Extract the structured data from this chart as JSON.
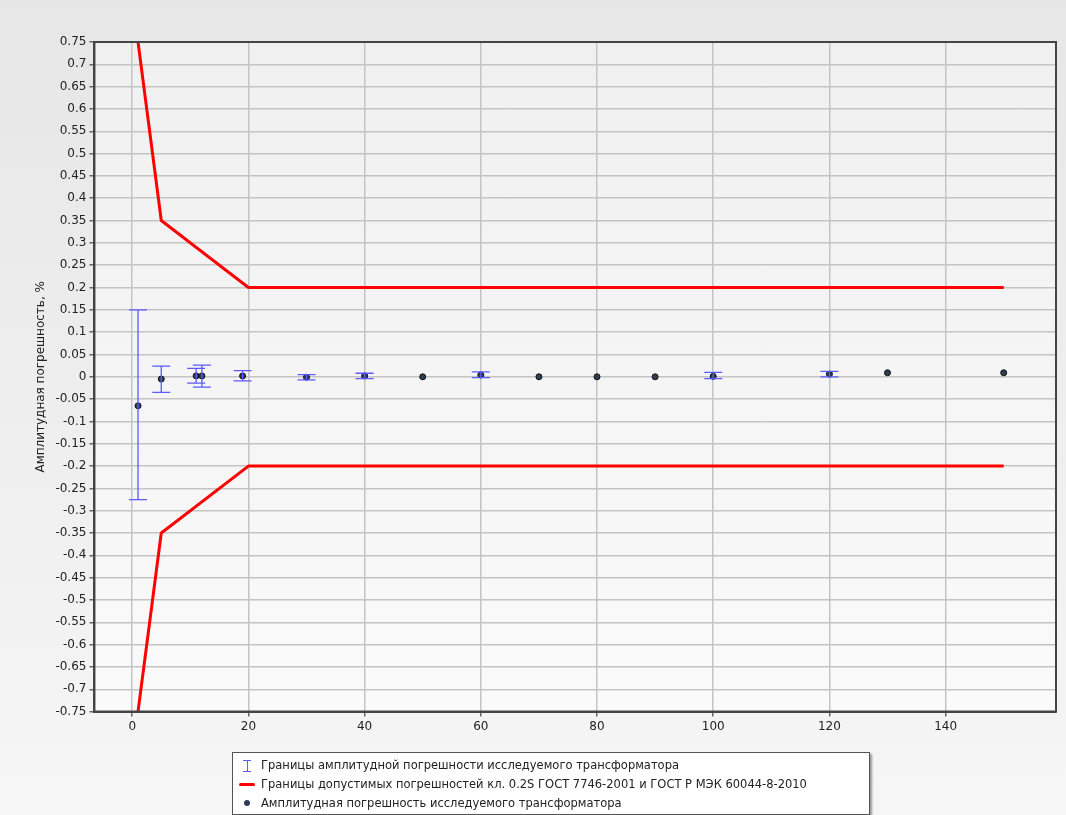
{
  "chart_data": {
    "type": "scatter",
    "ylabel": "Амплитудная погрешность, %",
    "xlim": [
      -6.5,
      159
    ],
    "xticks": [
      0,
      20,
      40,
      60,
      80,
      100,
      120,
      140
    ],
    "ylim": [
      -0.75,
      0.75
    ],
    "yticks": [
      -0.75,
      -0.7,
      -0.65,
      -0.6,
      -0.55,
      -0.5,
      -0.45,
      -0.4,
      -0.35,
      -0.3,
      -0.25,
      -0.2,
      -0.15,
      -0.1,
      -0.05,
      0,
      0.05,
      0.1,
      0.15,
      0.2,
      0.25,
      0.3,
      0.35,
      0.4,
      0.45,
      0.5,
      0.55,
      0.6,
      0.65,
      0.7,
      0.75
    ],
    "grid": true,
    "legend": "bottom",
    "series": [
      {
        "name": "Границы амплитудной погрешности исследуемого трансформатора",
        "color": "#5b5bff"
      },
      {
        "name": "Границы допустимых погрешностей кл. 0.2S ГОСТ 7746-2001 и ГОСТ Р МЭК 60044-8-2010",
        "type": "line",
        "marker": "none",
        "line_style": "solid",
        "color": "#ff0000",
        "x": [
          1,
          5,
          20,
          150
        ],
        "values": [
          0.75,
          0.35,
          0.2,
          0.2
        ]
      },
      {
        "type": "line",
        "marker": "none",
        "line_style": "solid",
        "color": "#ff0000",
        "x": [
          1,
          5,
          20,
          150
        ],
        "values": [
          -0.75,
          -0.35,
          -0.2,
          -0.2
        ]
      },
      {
        "name": "Амплитудная погрешность исследуемого трансформатора",
        "type": "scatter",
        "marker": "circle",
        "color": "#2f3d55",
        "x": [
          1,
          5,
          11,
          12,
          19,
          30,
          40,
          50,
          60,
          70,
          80,
          90,
          100,
          120,
          130,
          150
        ],
        "values": [
          -0.065,
          -0.005,
          0.002,
          0.002,
          0.002,
          -0.001,
          0.002,
          0,
          0.004,
          0,
          0,
          0,
          0.001,
          0.006,
          0.009,
          0.009
        ],
        "errors": [
          [
            -0.275,
            0.15
          ],
          [
            -0.035,
            0.024
          ],
          [
            -0.014,
            0.019
          ],
          [
            -0.023,
            0.026
          ],
          [
            -0.009,
            0.014
          ],
          [
            -0.007,
            0.005
          ],
          [
            -0.004,
            0.008
          ],
          null,
          [
            -0.002,
            0.011
          ],
          null,
          null,
          null,
          [
            -0.004,
            0.01
          ],
          [
            0,
            0.012
          ],
          null,
          null
        ]
      }
    ]
  }
}
